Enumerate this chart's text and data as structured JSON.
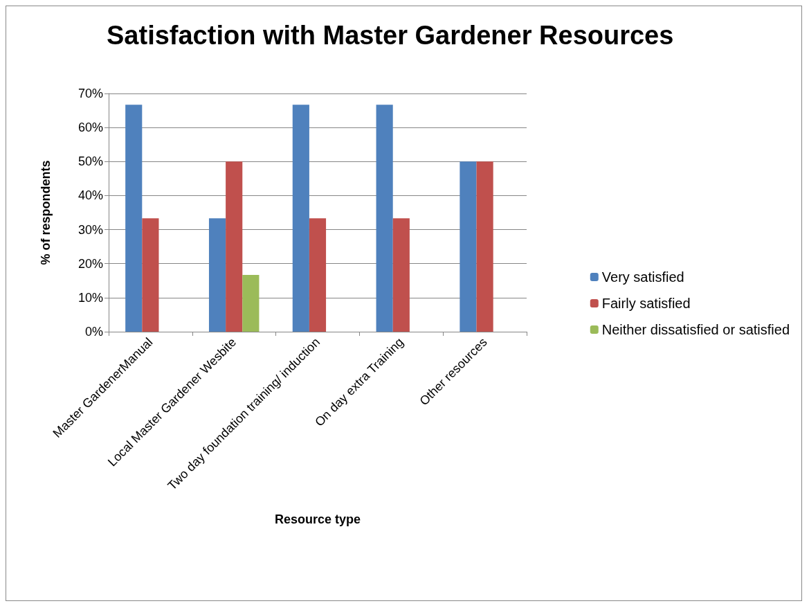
{
  "chart_data": {
    "type": "bar",
    "title": "Satisfaction with Master Gardener Resources",
    "xlabel": "Resource type",
    "ylabel": "% of respondents",
    "categories": [
      "Master GardenerManual",
      "Local Master Gardener Wesbite",
      "Two day foundation training/ induction",
      "On day extra Training",
      "Other resources"
    ],
    "series": [
      {
        "name": "Very satisfied",
        "color": "#4f81bd",
        "values": [
          66.7,
          33.3,
          66.7,
          66.7,
          50
        ]
      },
      {
        "name": "Fairly satisfied",
        "color": "#c0504d",
        "values": [
          33.3,
          50,
          33.3,
          33.3,
          50
        ]
      },
      {
        "name": "Neither dissatisfied or satisfied",
        "color": "#9bbb59",
        "values": [
          null,
          16.7,
          null,
          null,
          null
        ]
      }
    ],
    "ylim": [
      0,
      70
    ],
    "yticks": [
      {
        "value": 0,
        "label": "0%"
      },
      {
        "value": 10,
        "label": "10%"
      },
      {
        "value": 20,
        "label": "20%"
      },
      {
        "value": 30,
        "label": "30%"
      },
      {
        "value": 40,
        "label": "40%"
      },
      {
        "value": 50,
        "label": "50%"
      },
      {
        "value": 60,
        "label": "60%"
      },
      {
        "value": 70,
        "label": "70%"
      }
    ],
    "grid": "y",
    "legend": "right"
  }
}
